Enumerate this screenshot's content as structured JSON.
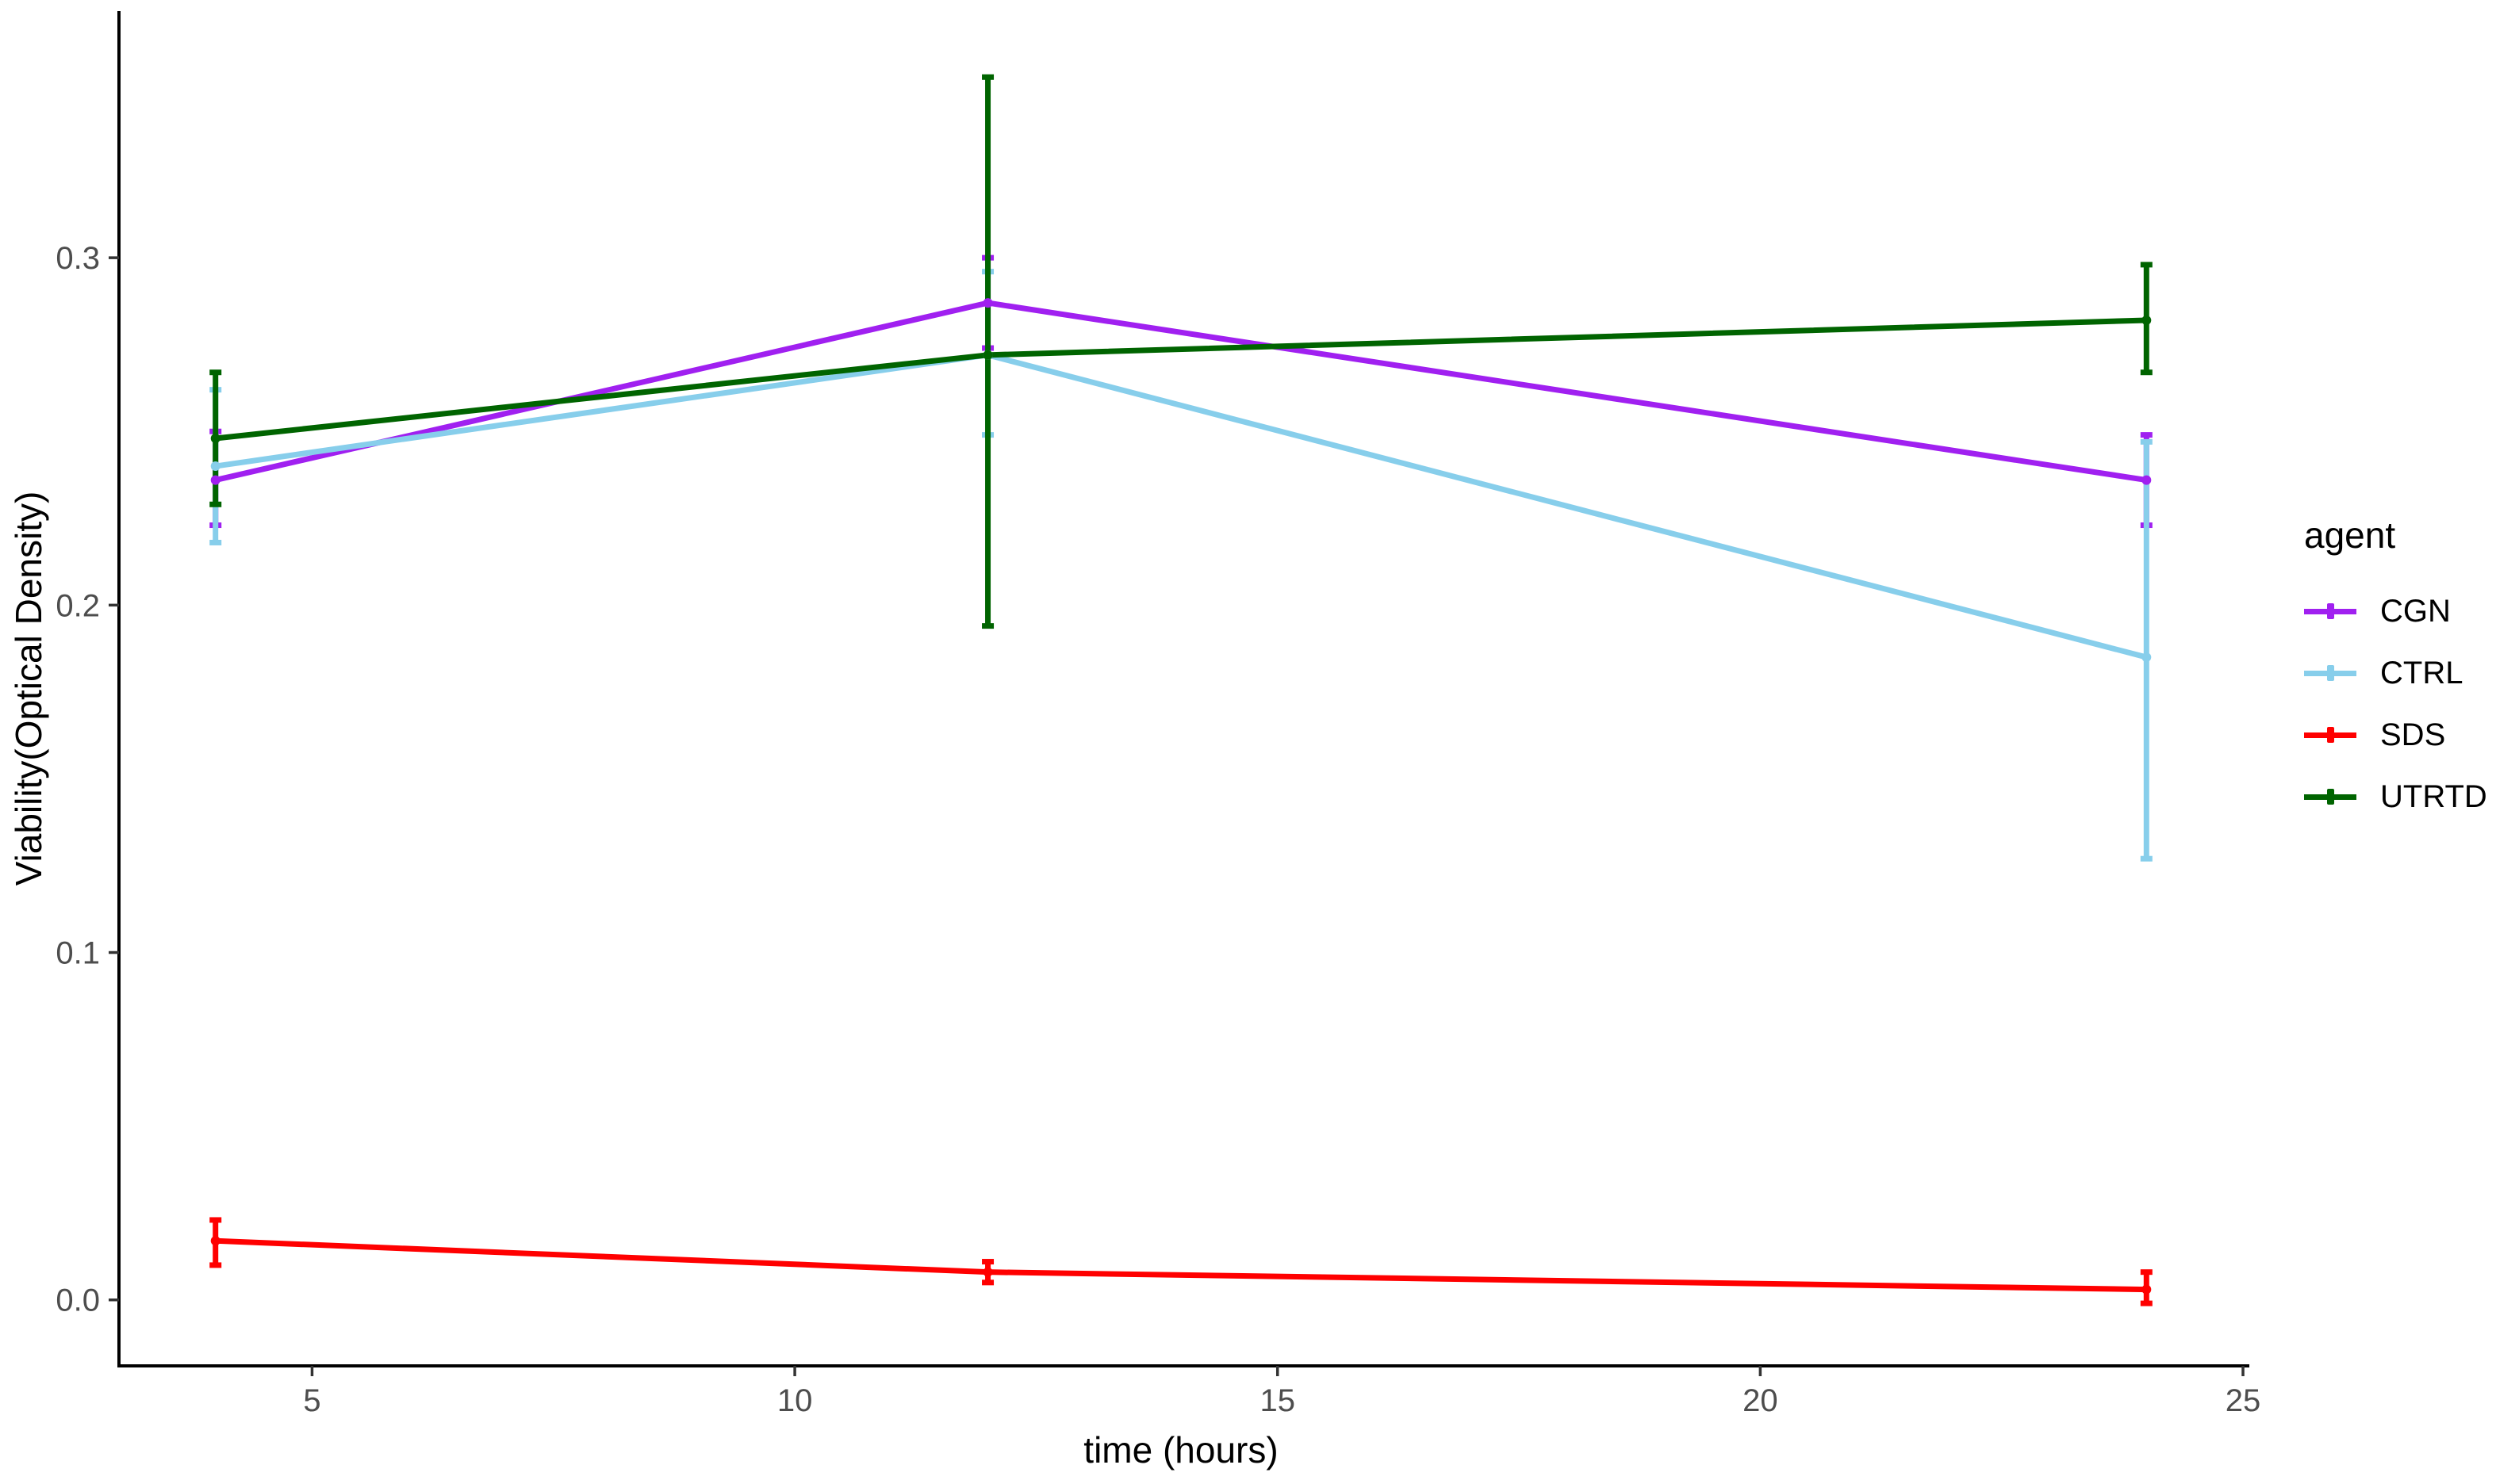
{
  "chart_data": {
    "type": "line",
    "title": "",
    "xlabel": "time (hours)",
    "ylabel": "Viability(Optical Density)",
    "legend_title": "agent",
    "legend_position": "right",
    "grid": false,
    "x": [
      4,
      12,
      24
    ],
    "xlim": [
      3,
      25
    ],
    "ylim": [
      -0.019,
      0.371
    ],
    "xticks": [
      5,
      10,
      15,
      20,
      25
    ],
    "xtick_labels": [
      "5",
      "10",
      "15",
      "20",
      "25"
    ],
    "yticks": [
      0.0,
      0.1,
      0.2,
      0.3
    ],
    "ytick_labels": [
      "0.0",
      "0.1",
      "0.2",
      "0.3"
    ],
    "series": [
      {
        "name": "CGN",
        "color": "#A020F0",
        "values": [
          0.236,
          0.287,
          0.236
        ],
        "ymin": [
          0.223,
          0.274,
          0.223
        ],
        "ymax": [
          0.25,
          0.3,
          0.249
        ]
      },
      {
        "name": "CTRL",
        "color": "#87CEEB",
        "values": [
          0.24,
          0.272,
          0.185
        ],
        "ymin": [
          0.218,
          0.249,
          0.127
        ],
        "ymax": [
          0.262,
          0.296,
          0.247
        ]
      },
      {
        "name": "SDS",
        "color": "#FF0000",
        "values": [
          0.017,
          0.008,
          0.003
        ],
        "ymin": [
          0.01,
          0.005,
          -0.001
        ],
        "ymax": [
          0.023,
          0.011,
          0.008
        ]
      },
      {
        "name": "UTRTD",
        "color": "#006400",
        "values": [
          0.248,
          0.272,
          0.282
        ],
        "ymin": [
          0.229,
          0.194,
          0.267
        ],
        "ymax": [
          0.267,
          0.352,
          0.298
        ]
      }
    ],
    "style": {
      "axis_line_color": "#000000",
      "tick_color": "#333333",
      "tick_label_color": "#4D4D4D",
      "axis_title_color": "#000000",
      "background": "#FFFFFF"
    }
  }
}
